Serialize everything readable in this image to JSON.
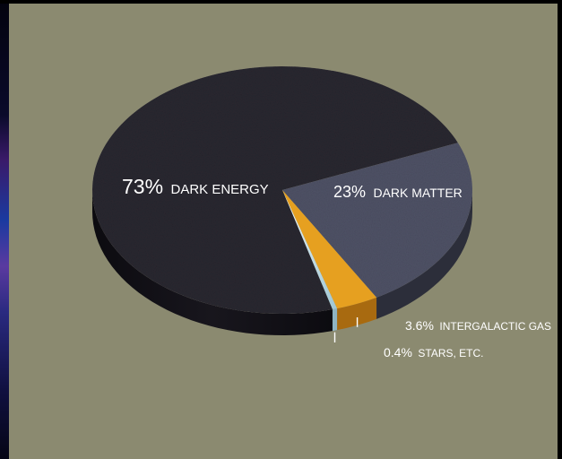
{
  "chart_data": {
    "type": "pie",
    "slices": [
      {
        "label": "DARK ENERGY",
        "pct_text": "73%",
        "value": 73,
        "color": "#2a2730"
      },
      {
        "label": "DARK MATTER",
        "pct_text": "23%",
        "value": 23,
        "color": "#4f5266"
      },
      {
        "label": "INTERGALACTIC GAS",
        "pct_text": "3.6%",
        "value": 3.6,
        "color": "#e6a020"
      },
      {
        "label": "STARS, ETC.",
        "pct_text": "0.4%",
        "value": 0.4,
        "color": "#cfe6ef"
      }
    ]
  },
  "colors": {
    "background": "#8b8a70",
    "label_text": "#ffffff"
  }
}
